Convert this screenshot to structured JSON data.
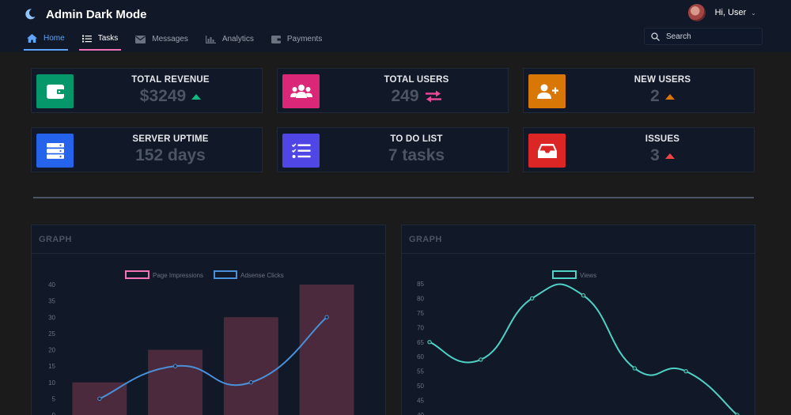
{
  "app": {
    "title": "Admin Dark Mode"
  },
  "user": {
    "greeting": "Hi, User"
  },
  "nav": {
    "items": [
      {
        "label": "Home",
        "icon": "home-icon",
        "state": "active"
      },
      {
        "label": "Tasks",
        "icon": "tasks-icon",
        "state": "selected"
      },
      {
        "label": "Messages",
        "icon": "envelope-icon",
        "state": ""
      },
      {
        "label": "Analytics",
        "icon": "bar-chart-icon",
        "state": ""
      },
      {
        "label": "Payments",
        "icon": "wallet-icon",
        "state": ""
      }
    ]
  },
  "search": {
    "placeholder": "Search"
  },
  "stats": [
    {
      "title": "TOTAL REVENUE",
      "value": "$3249",
      "icon": "wallet-icon",
      "color": "#059669",
      "trend": "up",
      "trend_color": "#10b981"
    },
    {
      "title": "TOTAL USERS",
      "value": "249",
      "icon": "users-icon",
      "color": "#db2777",
      "trend": "exchange",
      "trend_color": "#ec4899"
    },
    {
      "title": "NEW USERS",
      "value": "2",
      "icon": "user-plus-icon",
      "color": "#d97706",
      "trend": "up",
      "trend_color": "#d97706"
    },
    {
      "title": "SERVER UPTIME",
      "value": "152 days",
      "icon": "server-icon",
      "color": "#2563eb",
      "trend": "none",
      "trend_color": ""
    },
    {
      "title": "TO DO LIST",
      "value": "7 tasks",
      "icon": "tasks-icon",
      "color": "#4f46e5",
      "trend": "none",
      "trend_color": ""
    },
    {
      "title": "ISSUES",
      "value": "3",
      "icon": "inbox-icon",
      "color": "#dc2626",
      "trend": "up",
      "trend_color": "#ef4444"
    }
  ],
  "panels": [
    {
      "title": "GRAPH"
    },
    {
      "title": "GRAPH"
    }
  ],
  "chart_data": [
    {
      "type": "bar",
      "categories": [
        "",
        "",
        "",
        ""
      ],
      "series": [
        {
          "name": "Page Impressions",
          "type": "bar",
          "values": [
            10,
            20,
            30,
            40
          ],
          "color": "#f472b6"
        },
        {
          "name": "Adsense Clicks",
          "type": "line",
          "values": [
            5,
            15,
            10,
            30
          ],
          "color": "#4a90d9"
        }
      ],
      "yticks": [
        0,
        5,
        10,
        15,
        20,
        25,
        30,
        35,
        40
      ],
      "ylim": [
        0,
        40
      ],
      "legend": "top",
      "grid": false
    },
    {
      "type": "line",
      "series": [
        {
          "name": "Views",
          "values": [
            65,
            59,
            80,
            81,
            56,
            55,
            40
          ],
          "color": "#4fd1c5"
        }
      ],
      "yticks": [
        40,
        45,
        50,
        55,
        60,
        65,
        70,
        75,
        80,
        85
      ],
      "ylim": [
        40,
        85
      ],
      "legend": "top",
      "grid": false
    }
  ]
}
